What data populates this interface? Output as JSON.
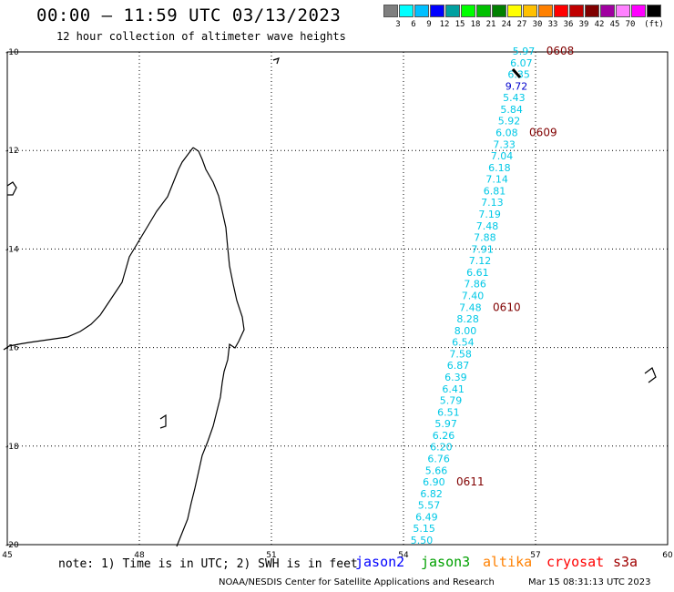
{
  "header": {
    "title": "00:00 – 11:59 UTC 03/13/2023",
    "subtitle": "12 hour collection of altimeter wave heights"
  },
  "legend": {
    "colors": [
      "#7f7f7f",
      "#00ffff",
      "#00c0ff",
      "#0000ff",
      "#00a0a0",
      "#00ff00",
      "#00c000",
      "#008000",
      "#ffff00",
      "#ffc000",
      "#ff8000",
      "#ff0000",
      "#c00000",
      "#800000",
      "#a000a0",
      "#ff80ff",
      "#ff00ff",
      "#000000"
    ],
    "labels": [
      "3",
      "6",
      "9",
      "12",
      "15",
      "18",
      "21",
      "24",
      "27",
      "30",
      "33",
      "36",
      "39",
      "42",
      "45",
      "70"
    ],
    "unit": "(ft)"
  },
  "map": {
    "lon_range": [
      45,
      60
    ],
    "lat_range": [
      -20,
      -10
    ],
    "lon_ticks": [
      "45",
      "48",
      "51",
      "54",
      "57",
      "60"
    ],
    "lat_ticks": [
      "-10",
      "-12",
      "-14",
      "-16",
      "-18",
      "-20"
    ],
    "grid": true
  },
  "track": {
    "color": "#00c8e6",
    "high_color": "#0000cc",
    "values": [
      "5.97",
      "6.07",
      "6.35",
      "9.72",
      "5.43",
      "5.84",
      "5.92",
      "6.08",
      "7.33",
      "7.04",
      "6.18",
      "7.14",
      "6.81",
      "7.13",
      "7.19",
      "7.48",
      "7.88",
      "7.91",
      "7.12",
      "6.61",
      "7.86",
      "7.40",
      "7.48",
      "8.28",
      "8.00",
      "6.54",
      "7.58",
      "6.87",
      "6.39",
      "6.41",
      "5.79",
      "6.51",
      "5.97",
      "6.26",
      "6.20",
      "6.76",
      "5.66",
      "6.90",
      "6.82",
      "5.57",
      "6.49",
      "5.15",
      "5.50"
    ],
    "time_labels": [
      "0608",
      "0609",
      "0610",
      "0611"
    ],
    "time_color": "#800000"
  },
  "footer": {
    "note": "note: 1) Time is in UTC; 2) SWH is in feet",
    "satellites": [
      {
        "name": "jason2",
        "color": "#0000ff"
      },
      {
        "name": "jason3",
        "color": "#00a000"
      },
      {
        "name": "altika",
        "color": "#ff8000"
      },
      {
        "name": "cryosat",
        "color": "#ff0000"
      },
      {
        "name": "s3a",
        "color": "#a00000"
      }
    ],
    "credit": "NOAA/NESDIS Center for Satellite Applications and Research",
    "timestamp": "Mar 15 08:31:13 UTC 2023"
  }
}
